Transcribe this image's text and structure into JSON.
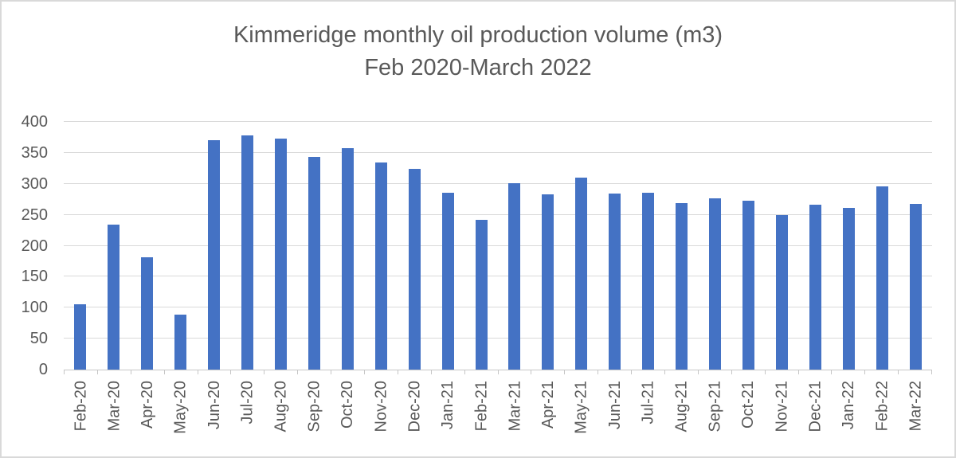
{
  "chart_data": {
    "type": "bar",
    "title_line1": "Kimmeridge monthly oil production volume (m3)",
    "title_line2": "Feb 2020-March 2022",
    "categories": [
      "Feb-20",
      "Mar-20",
      "Apr-20",
      "May-20",
      "Jun-20",
      "Jul-20",
      "Aug-20",
      "Sep-20",
      "Oct-20",
      "Nov-20",
      "Dec-20",
      "Jan-21",
      "Feb-21",
      "Mar-21",
      "Apr-21",
      "May-21",
      "Jun-21",
      "Jul-21",
      "Aug-21",
      "Sep-21",
      "Oct-21",
      "Nov-21",
      "Dec-21",
      "Jan-22",
      "Feb-22",
      "Mar-22"
    ],
    "values": [
      105,
      234,
      182,
      89,
      370,
      378,
      373,
      344,
      357,
      335,
      324,
      285,
      242,
      301,
      283,
      310,
      284,
      286,
      269,
      277,
      273,
      249,
      266,
      261,
      296,
      267
    ],
    "xlabel": "",
    "ylabel": "",
    "ylim": [
      0,
      400
    ],
    "yticks": [
      0,
      50,
      100,
      150,
      200,
      250,
      300,
      350,
      400
    ],
    "grid": true,
    "legend_position": "none",
    "bar_color": "#4472C4",
    "gridline_color": "#d9d9d9",
    "axis_line_color": "#c6c6c6",
    "text_color": "#595959"
  }
}
